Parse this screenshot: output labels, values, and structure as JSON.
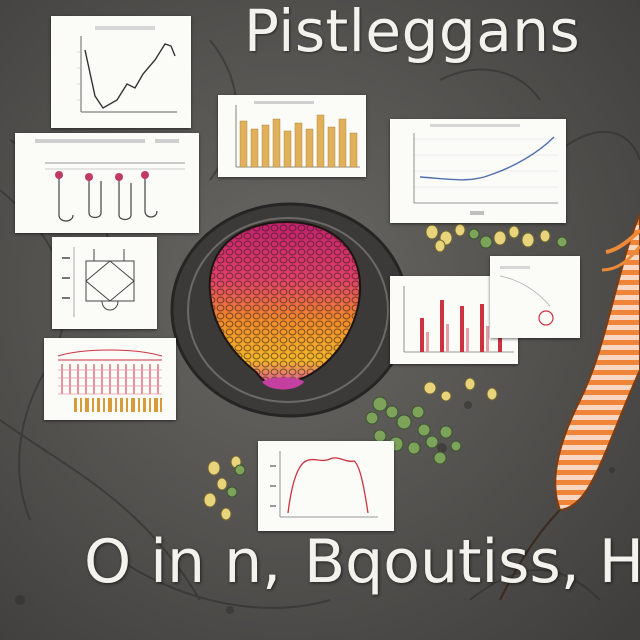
{
  "title": "Pistleggans",
  "caption_left": "O in n,",
  "caption_right": "Bqoutiss, H",
  "colors": {
    "background": "#5a5855",
    "text": "#f4f2ec",
    "bar_gold": "#e0b05a",
    "bar_red": "#cc3340",
    "line_blue": "#4f6fb0",
    "leaf_green": "#7da35a",
    "flower_yellow": "#e8d47a",
    "shrimp_orange": "#e9782c"
  },
  "icons": [
    "honeycomb-flower-icon",
    "shrimp-icon",
    "leaf-cluster-icon"
  ]
}
